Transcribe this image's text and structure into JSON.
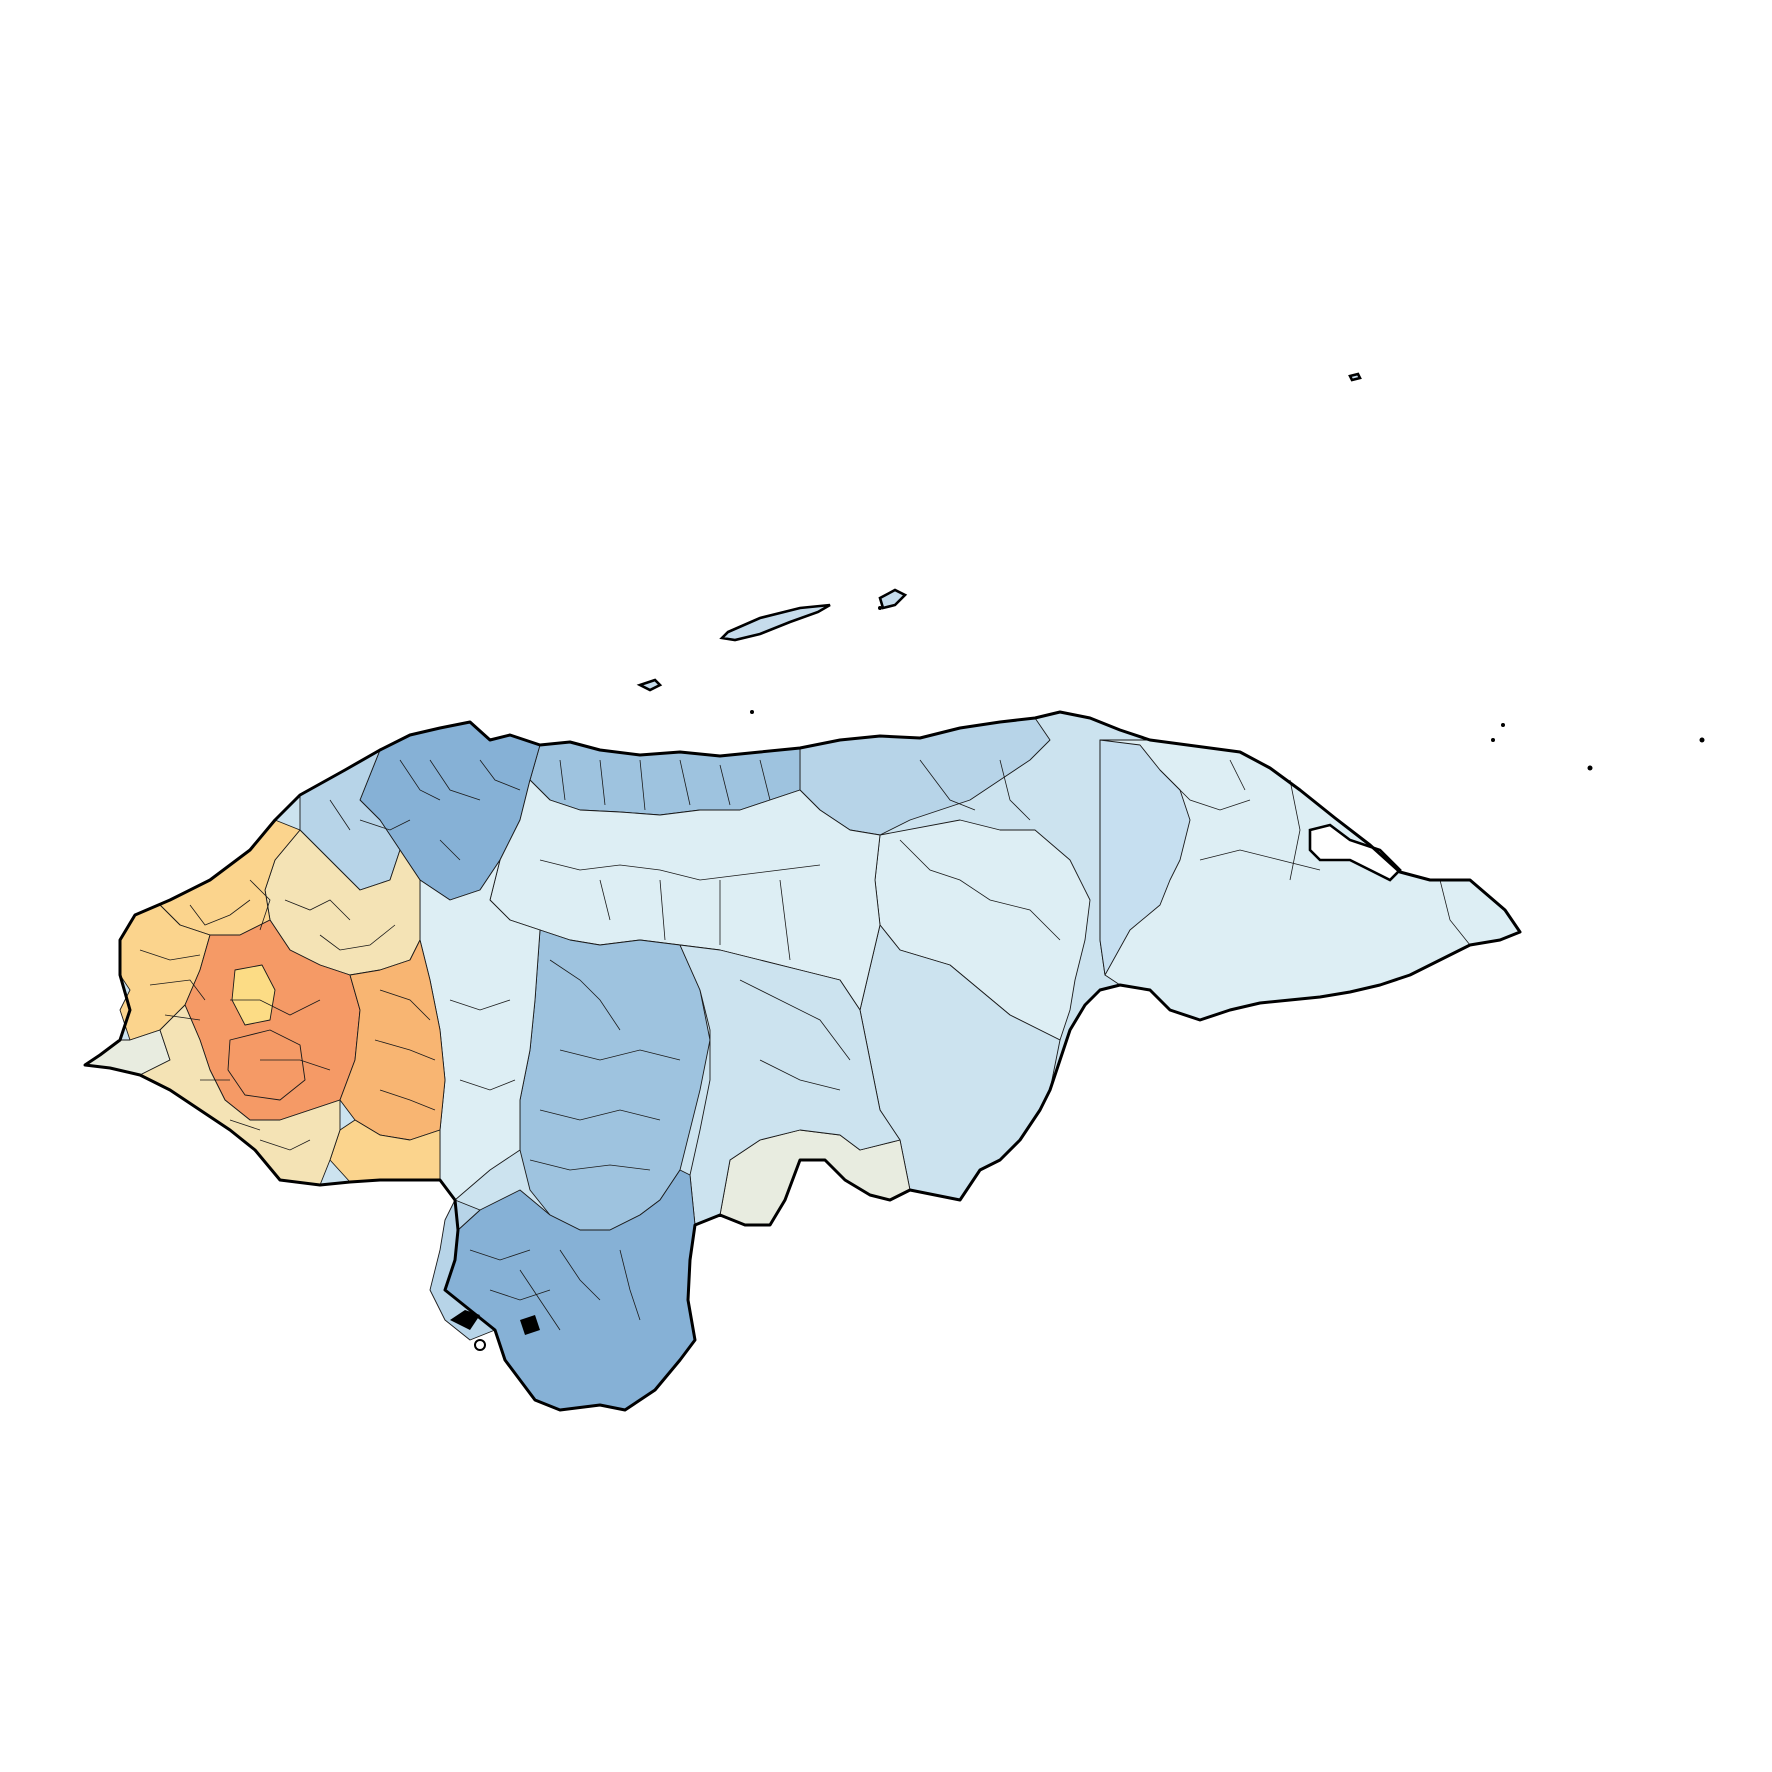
{
  "map": {
    "type": "choropleth",
    "palette": {
      "high_warm_dark": "#f59a66",
      "high_warm": "#f8b572",
      "warm_mid": "#fbd48d",
      "warm_light": "#f4e3b5",
      "neutral": "#e8ece0",
      "cool_lightest": "#ddeef4",
      "cool_light": "#cce3ef",
      "cool_mid": "#b7d4e8",
      "cool_dark": "#9ec3df",
      "cool_darkest": "#86b1d6",
      "no_data": "#dddddd"
    },
    "border_color": "#000000",
    "legend": "none",
    "title": ""
  }
}
